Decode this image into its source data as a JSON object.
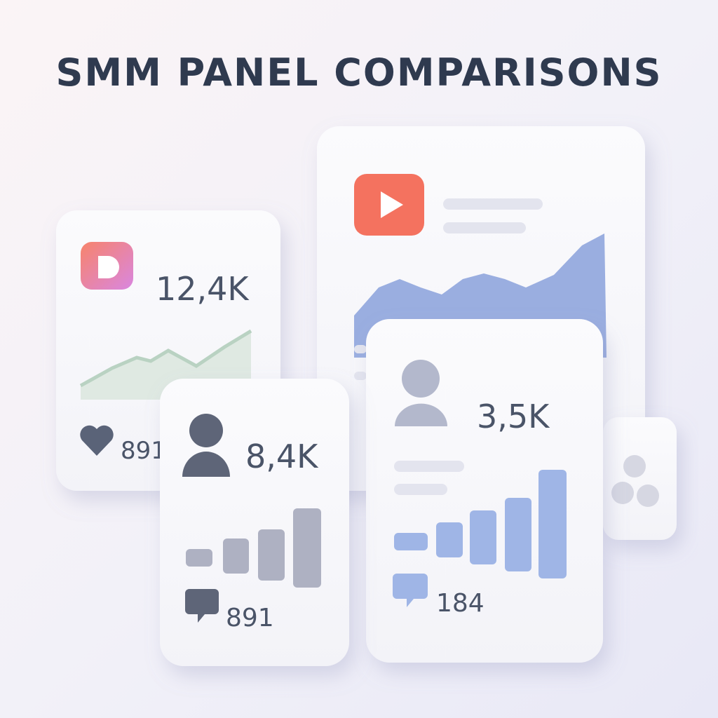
{
  "title": "SMM PANEL COMPARISONS",
  "cards": [
    {
      "stat": "12,4K",
      "count": "891"
    },
    {
      "stat": "8,4K",
      "count": "891"
    },
    {
      "stat": "3,5K",
      "count": "184"
    }
  ]
}
